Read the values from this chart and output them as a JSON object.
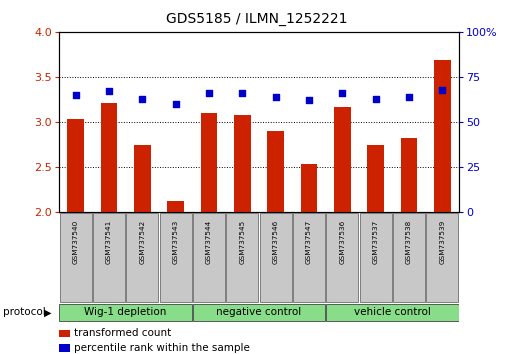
{
  "title": "GDS5185 / ILMN_1252221",
  "samples": [
    "GSM737540",
    "GSM737541",
    "GSM737542",
    "GSM737543",
    "GSM737544",
    "GSM737545",
    "GSM737546",
    "GSM737547",
    "GSM737536",
    "GSM737537",
    "GSM737538",
    "GSM737539"
  ],
  "transformed_count": [
    3.04,
    3.21,
    2.75,
    2.13,
    3.1,
    3.08,
    2.9,
    2.54,
    3.17,
    2.75,
    2.82,
    3.69
  ],
  "percentile_rank": [
    65,
    67,
    63,
    60,
    66,
    66,
    64,
    62,
    66,
    63,
    64,
    68
  ],
  "groups": [
    {
      "label": "Wig-1 depletion",
      "indices": [
        0,
        1,
        2,
        3
      ]
    },
    {
      "label": "negative control",
      "indices": [
        4,
        5,
        6,
        7
      ]
    },
    {
      "label": "vehicle control",
      "indices": [
        8,
        9,
        10,
        11
      ]
    }
  ],
  "group_colors": [
    "#aaddaa",
    "#66cc66",
    "#66cc66"
  ],
  "bar_color": "#cc2200",
  "dot_color": "#0000cc",
  "ylim_left": [
    2.0,
    4.0
  ],
  "ylim_right": [
    0,
    100
  ],
  "yticks_left": [
    2.0,
    2.5,
    3.0,
    3.5,
    4.0
  ],
  "yticks_right": [
    0,
    25,
    50,
    75,
    100
  ],
  "ytick_labels_right": [
    "0",
    "25",
    "50",
    "75",
    "100%"
  ],
  "protocol_label": "protocol",
  "legend_items": [
    {
      "color": "#cc2200",
      "label": "transformed count"
    },
    {
      "color": "#0000cc",
      "label": "percentile rank within the sample"
    }
  ],
  "bar_width": 0.5,
  "bar_bottom": 2.0,
  "sample_box_color": "#c8c8c8",
  "group_box_color": "#88dd88",
  "fig_width": 5.13,
  "fig_height": 3.54,
  "fig_dpi": 100
}
